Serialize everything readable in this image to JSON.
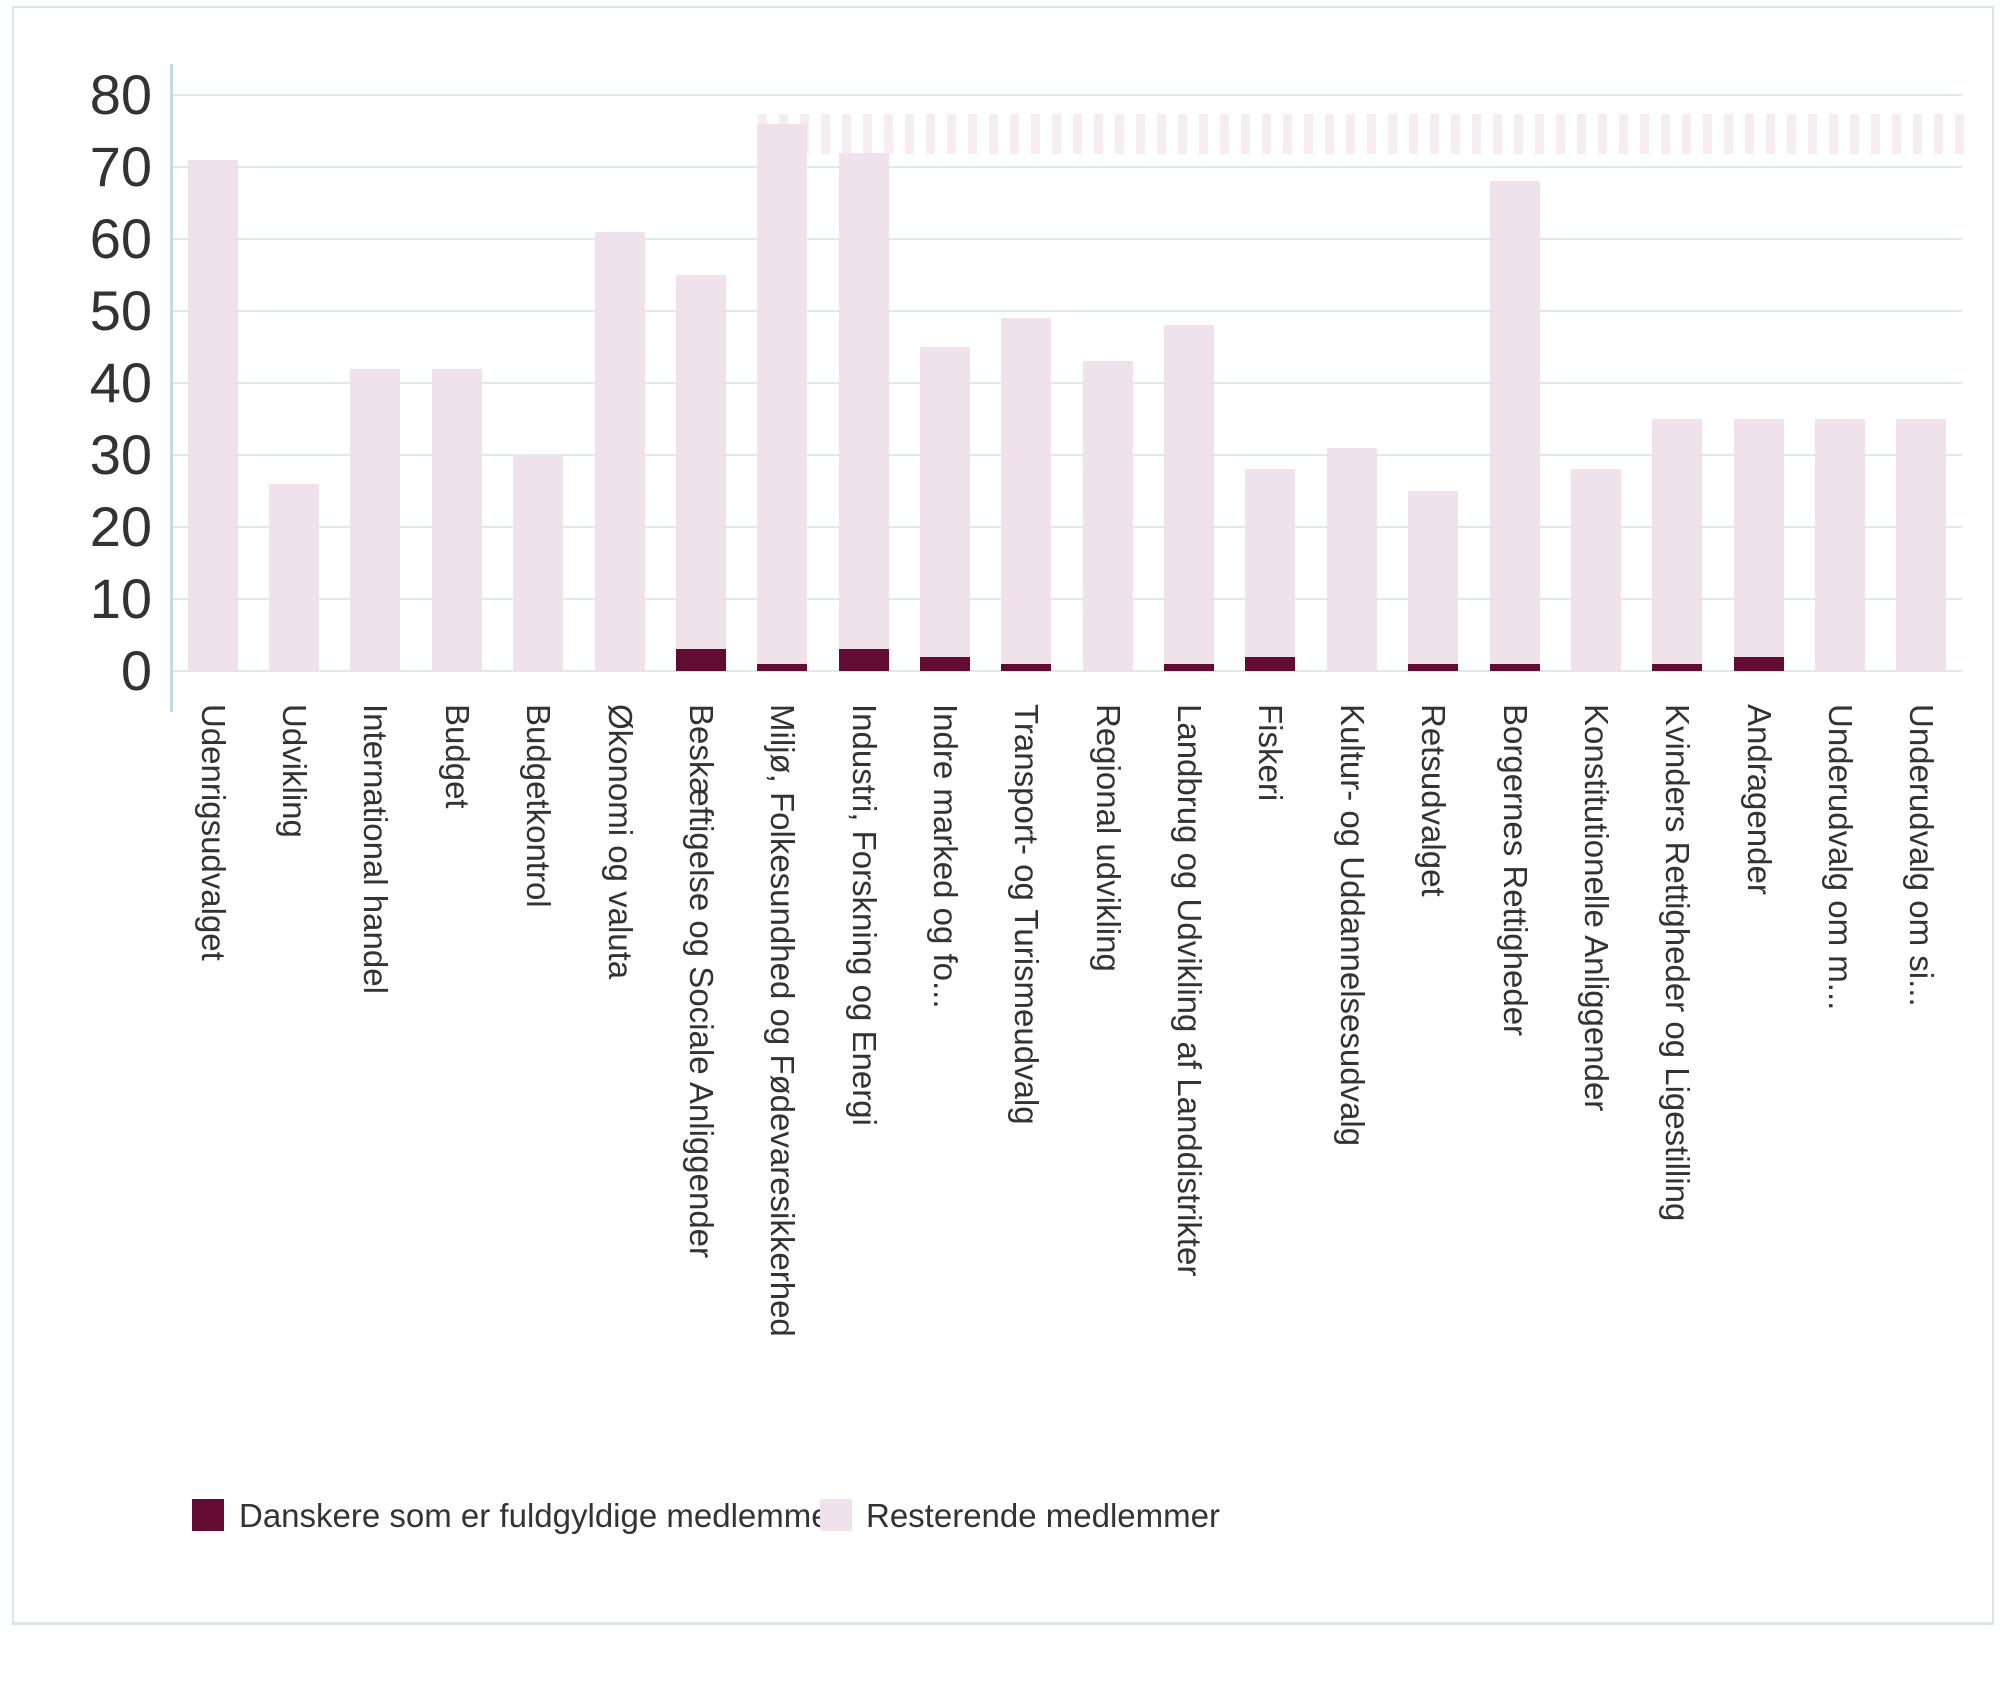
{
  "chart_data": {
    "type": "bar",
    "stacked": true,
    "title": "",
    "xlabel": "",
    "ylabel": "",
    "ylim": [
      0,
      80
    ],
    "yticks": [
      0,
      10,
      20,
      30,
      40,
      50,
      60,
      70,
      80
    ],
    "grid": true,
    "legend_position": "bottom-left",
    "categories": [
      "Udenrigsudvalget",
      "Udvikling",
      "International handel",
      "Budget",
      "Budgetkontrol",
      "Økonomi og valuta",
      "Beskæftigelse og Sociale Anliggender",
      "Miljø, Folkesundhed og Fødevaresikkerhed",
      "Industri, Forskning og Energi",
      "Indre marked og fo...",
      "Transport- og Turismeudvalg",
      "Regional udvikling",
      "Landbrug og Udvikling af Landdistrikter",
      "Fiskeri",
      "Kultur- og Uddannelsesudvalg",
      "Retsudvalget",
      "Borgernes Rettigheder",
      "Konstitutionelle Anliggender",
      "Kvinders Rettigheder og Ligestilling",
      "Andragender",
      "Underudvalg om m...",
      "Underudvalg om si..."
    ],
    "series": [
      {
        "name": "Danskere som er fuldgyldige medlemmer",
        "color": "#630c33",
        "values": [
          0,
          0,
          0,
          0,
          0,
          0,
          3,
          1,
          3,
          2,
          1,
          0,
          1,
          2,
          0,
          1,
          1,
          0,
          1,
          2,
          0,
          0
        ]
      },
      {
        "name": "Resterende medlemmer",
        "color": "#f0e2ea",
        "values": [
          71,
          26,
          42,
          42,
          30,
          61,
          52,
          75,
          69,
          43,
          48,
          43,
          47,
          26,
          31,
          24,
          67,
          28,
          34,
          33,
          35,
          35
        ]
      }
    ]
  },
  "theme": {
    "background": "#ffffff",
    "frame_border": "#dbe7ed",
    "gridline": "#dceaf0",
    "axis_line": "#c2dbe5",
    "text": "#333333",
    "artifact_pink": "#f0e2eb"
  }
}
